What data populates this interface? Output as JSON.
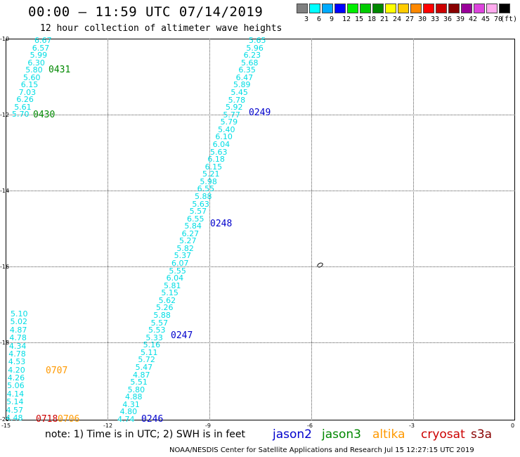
{
  "title": "00:00 – 11:59 UTC 07/14/2019",
  "subtitle": "12 hour collection of altimeter wave heights",
  "color_scale": {
    "unit": "(ft)",
    "bins": [
      {
        "label": "3",
        "color": "#808080"
      },
      {
        "label": "6",
        "color": "#00ffff"
      },
      {
        "label": "9",
        "color": "#00aaff"
      },
      {
        "label": "12",
        "color": "#0000ff"
      },
      {
        "label": "15",
        "color": "#00ee00"
      },
      {
        "label": "18",
        "color": "#00cc00"
      },
      {
        "label": "21",
        "color": "#008800"
      },
      {
        "label": "24",
        "color": "#ffff00"
      },
      {
        "label": "27",
        "color": "#ffcc00"
      },
      {
        "label": "30",
        "color": "#ff8800"
      },
      {
        "label": "33",
        "color": "#ff0000"
      },
      {
        "label": "36",
        "color": "#cc0000"
      },
      {
        "label": "39",
        "color": "#880000"
      },
      {
        "label": "42",
        "color": "#990099"
      },
      {
        "label": "45",
        "color": "#dd44dd"
      },
      {
        "label": "70",
        "color": "#ffaaee"
      },
      {
        "label": "",
        "color": "#000000"
      }
    ]
  },
  "axes": {
    "lon_ticks": [
      "-15",
      "-12",
      "-9",
      "-6",
      "-3",
      "0"
    ],
    "lat_ticks": [
      "-10",
      "-12",
      "-14",
      "-16",
      "-18",
      "-20"
    ]
  },
  "tracks": [
    {
      "satellite": "jason3",
      "pass": "0431",
      "time_labels": [
        "0431"
      ],
      "swh": [
        "6.67",
        "6.57",
        "5.99",
        "6.30",
        "5.80",
        "5.60",
        "6.15",
        "7.03",
        "6.26",
        "5.61",
        "5.70"
      ]
    },
    {
      "satellite": "jason3",
      "pass": "0430",
      "time_labels": [
        "0430"
      ],
      "swh": []
    },
    {
      "satellite": "jason2",
      "pass": "main",
      "time_labels": [
        "0249",
        "0248",
        "0247",
        "0246"
      ],
      "swh": [
        "5.65",
        "5.96",
        "6.23",
        "5.68",
        "6.35",
        "6.47",
        "5.89",
        "5.45",
        "5.78",
        "5.92",
        "5.77",
        "5.79",
        "5.40",
        "6.10",
        "6.04",
        "5.63",
        "6.18",
        "6.15",
        "5.21",
        "5.98",
        "6.55",
        "5.88",
        "5.63",
        "5.57",
        "6.55",
        "5.84",
        "6.27",
        "5.27",
        "5.82",
        "5.37",
        "6.07",
        "5.55",
        "6.04",
        "5.81",
        "5.15",
        "5.62",
        "5.26",
        "5.88",
        "5.57",
        "5.53",
        "5.33",
        "5.16",
        "5.11",
        "5.72",
        "5.47",
        "4.87",
        "5.51",
        "5.80",
        "4.88",
        "4.31",
        "4.80",
        "4.74"
      ]
    },
    {
      "satellite": "altika",
      "pass": "0707",
      "time_labels": [
        "0707"
      ],
      "swh": [
        "5.10",
        "5.02",
        "4.87",
        "4.78",
        "4.34",
        "4.78",
        "4.53",
        "4.20",
        "4.26",
        "5.06",
        "4.14",
        "5.14",
        "4.57",
        "4.48"
      ]
    },
    {
      "satellite": "cryosat",
      "pass": "0718",
      "time_labels": [
        "0718"
      ],
      "swh": []
    },
    {
      "satellite": "altika",
      "pass": "0706",
      "time_labels": [
        "0706"
      ],
      "swh": []
    }
  ],
  "note": "note: 1) Time is in UTC; 2) SWH is in feet",
  "legend": [
    {
      "name": "jason2",
      "color": "#0000cc"
    },
    {
      "name": "jason3",
      "color": "#008800"
    },
    {
      "name": "altika",
      "color": "#ff9900"
    },
    {
      "name": "cryosat",
      "color": "#cc0000"
    },
    {
      "name": "s3a",
      "color": "#880000"
    }
  ],
  "credit": "NOAA/NESDIS Center for Satellite Applications and Research    Jul 15 12:27:15 UTC 2019"
}
